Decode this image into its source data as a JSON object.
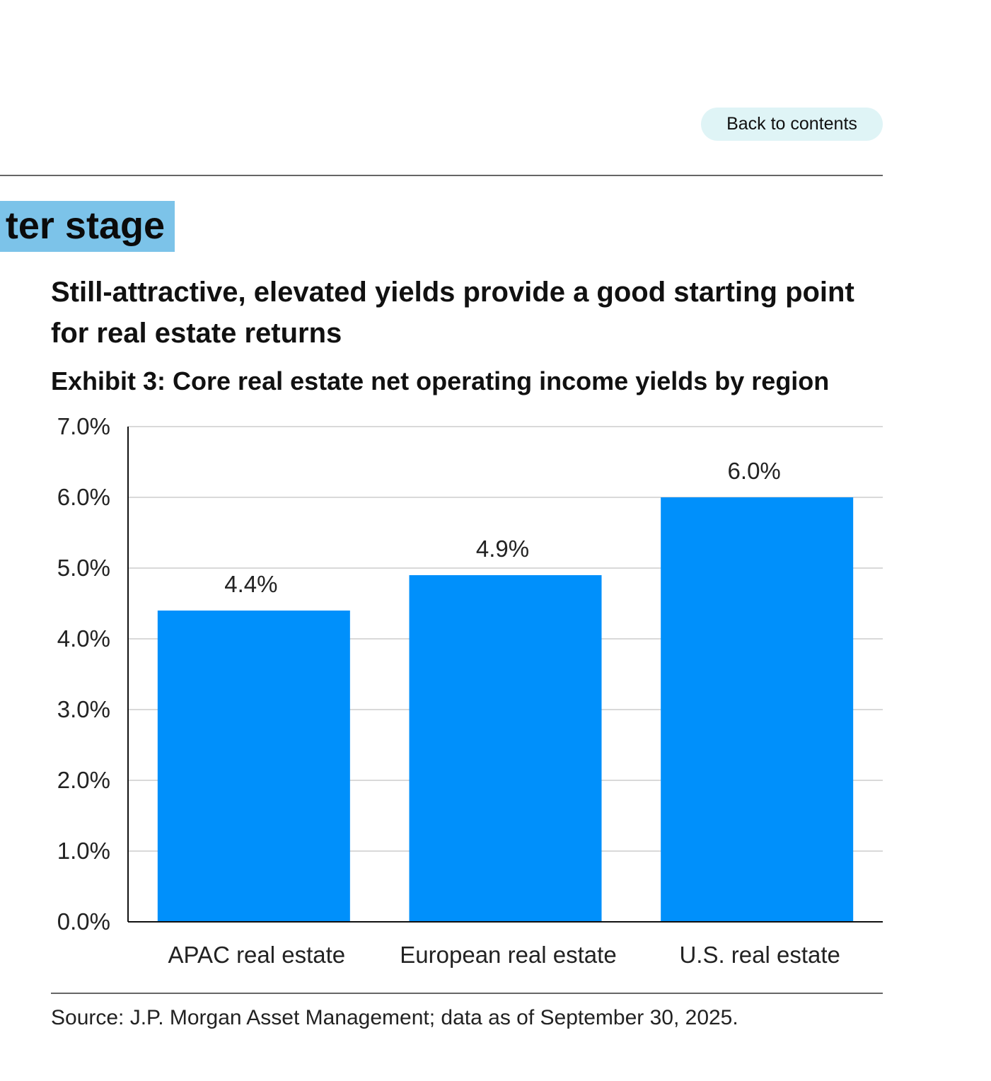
{
  "nav": {
    "back_label": "Back to contents"
  },
  "section": {
    "tag_text": "ter stage"
  },
  "headline": "Still-attractive, elevated yields provide a good starting point for real estate returns",
  "exhibit_title": "Exhibit 3: Core real estate net operating income yields by region",
  "source_note": "Source: J.P. Morgan Asset Management; data as of September 30, 2025.",
  "colors": {
    "bar": "#0090fb",
    "section_tag": "#7cc3e9",
    "back_button_bg": "#dff4f6",
    "gridline": "#d9d9d9",
    "axis": "#111111"
  },
  "chart_data": {
    "type": "bar",
    "title": "Exhibit 3: Core real estate net operating income yields by region",
    "xlabel": "",
    "ylabel": "",
    "categories": [
      "APAC real estate",
      "European real estate",
      "U.S. real estate"
    ],
    "values": [
      4.4,
      4.9,
      6.0
    ],
    "data_labels": [
      "4.4%",
      "4.9%",
      "6.0%"
    ],
    "ylim": [
      0,
      7
    ],
    "yticks": [
      0,
      1,
      2,
      3,
      4,
      5,
      6,
      7
    ],
    "ytick_labels": [
      "0.0%",
      "1.0%",
      "2.0%",
      "3.0%",
      "4.0%",
      "5.0%",
      "6.0%",
      "7.0%"
    ],
    "grid": true,
    "legend": "none"
  }
}
